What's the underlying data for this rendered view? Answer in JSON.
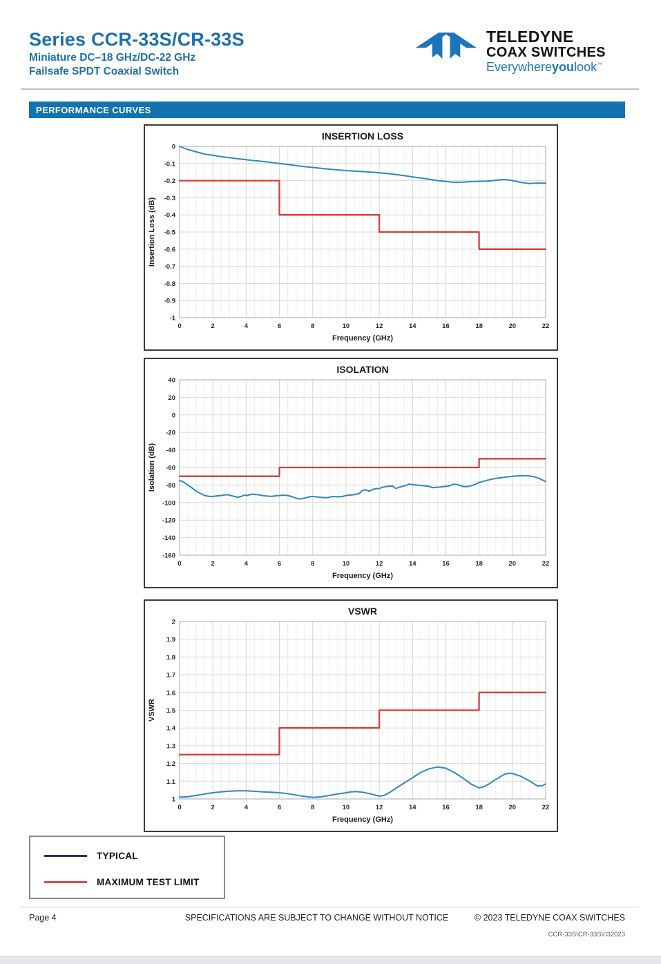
{
  "header": {
    "title": "Series CCR-33S/CR-33S",
    "subtitle1": "Miniature DC–18 GHz/DC-22 GHz",
    "subtitle2": "Failsafe SPDT Coaxial Switch",
    "logo": {
      "line1": "TELEDYNE",
      "line2": "COAX SWITCHES",
      "tagline_pre": "Everywhere",
      "tagline_bold": "you",
      "tagline_post": "look",
      "tm": "™"
    }
  },
  "section_banner": "PERFORMANCE CURVES",
  "colors": {
    "heading_blue": "#1E6FAD",
    "banner_blue": "#1173AF",
    "logo_blue": "#1B75BC",
    "typical_curve": "#2E86C1",
    "max_limit_curve": "#D93B36",
    "legend_typical": "#1F3864",
    "legend_limit": "#CE4B51"
  },
  "legend": {
    "items": [
      {
        "label": "TYPICAL",
        "color": "#1F3864"
      },
      {
        "label": "MAXIMUM TEST LIMIT",
        "color": "#CE4B51"
      }
    ]
  },
  "footer": {
    "page": "Page 4",
    "center": "SPECIFICATIONS ARE SUBJECT TO CHANGE WITHOUT NOTICE",
    "right": "© 2023 TELEDYNE COAX SWITCHES",
    "doc_number": "CCR-33S\\CR-33S\\032023"
  },
  "chart_data": [
    {
      "type": "line",
      "title": "INSERTION LOSS",
      "xlabel": "Frequency (GHz)",
      "ylabel": "Insertion Loss (dB)",
      "xlim": [
        0,
        22
      ],
      "ylim": [
        -1,
        0
      ],
      "xtick_step": 2,
      "ytick_step": 0.1,
      "x_minor_step": 0.5,
      "grid": true,
      "legend_position": "none",
      "series": [
        {
          "name": "TYPICAL",
          "color": "#2E86C1",
          "width": 2,
          "points": [
            [
              0,
              0
            ],
            [
              0.5,
              -0.018
            ],
            [
              1,
              -0.032
            ],
            [
              1.5,
              -0.045
            ],
            [
              2,
              -0.052
            ],
            [
              2.5,
              -0.06
            ],
            [
              3,
              -0.066
            ],
            [
              3.5,
              -0.072
            ],
            [
              4,
              -0.078
            ],
            [
              4.5,
              -0.083
            ],
            [
              5,
              -0.088
            ],
            [
              5.5,
              -0.094
            ],
            [
              6,
              -0.1
            ],
            [
              6.5,
              -0.106
            ],
            [
              7,
              -0.112
            ],
            [
              7.5,
              -0.118
            ],
            [
              8,
              -0.123
            ],
            [
              8.5,
              -0.128
            ],
            [
              9,
              -0.133
            ],
            [
              9.5,
              -0.137
            ],
            [
              10,
              -0.141
            ],
            [
              10.5,
              -0.144
            ],
            [
              11,
              -0.147
            ],
            [
              11.5,
              -0.15
            ],
            [
              12,
              -0.154
            ],
            [
              12.5,
              -0.158
            ],
            [
              13,
              -0.164
            ],
            [
              13.5,
              -0.171
            ],
            [
              14,
              -0.178
            ],
            [
              14.5,
              -0.185
            ],
            [
              15,
              -0.192
            ],
            [
              15.5,
              -0.199
            ],
            [
              16,
              -0.205
            ],
            [
              16.5,
              -0.21
            ],
            [
              17,
              -0.209
            ],
            [
              17.5,
              -0.206
            ],
            [
              18,
              -0.204
            ],
            [
              18.5,
              -0.203
            ],
            [
              19,
              -0.198
            ],
            [
              19.5,
              -0.193
            ],
            [
              20,
              -0.199
            ],
            [
              20.5,
              -0.21
            ],
            [
              21,
              -0.217
            ],
            [
              21.5,
              -0.214
            ],
            [
              22,
              -0.215
            ]
          ]
        },
        {
          "name": "MAXIMUM TEST LIMIT",
          "color": "#D93B36",
          "width": 2.3,
          "points": [
            [
              0,
              -0.2
            ],
            [
              6,
              -0.2
            ],
            [
              6,
              -0.4
            ],
            [
              12,
              -0.4
            ],
            [
              12,
              -0.5
            ],
            [
              18,
              -0.5
            ],
            [
              18,
              -0.6
            ],
            [
              22,
              -0.6
            ]
          ]
        }
      ]
    },
    {
      "type": "line",
      "title": "ISOLATION",
      "xlabel": "Frequency (GHz)",
      "ylabel": "Isolation (dB)",
      "xlim": [
        0,
        22
      ],
      "ylim": [
        -160,
        40
      ],
      "xtick_step": 2,
      "ytick_step": 20,
      "x_minor_step": 0.5,
      "grid": true,
      "legend_position": "none",
      "series": [
        {
          "name": "TYPICAL",
          "color": "#2E86C1",
          "width": 2,
          "points": [
            [
              0,
              -75
            ],
            [
              0.2,
              -76
            ],
            [
              0.5,
              -80
            ],
            [
              0.8,
              -84
            ],
            [
              1,
              -87
            ],
            [
              1.2,
              -89
            ],
            [
              1.5,
              -92
            ],
            [
              1.8,
              -93
            ],
            [
              2,
              -93
            ],
            [
              2.2,
              -92.5
            ],
            [
              2.5,
              -92
            ],
            [
              2.8,
              -91
            ],
            [
              3,
              -91.5
            ],
            [
              3.2,
              -92.5
            ],
            [
              3.5,
              -94
            ],
            [
              3.7,
              -93
            ],
            [
              3.9,
              -91.5
            ],
            [
              4.1,
              -92
            ],
            [
              4.3,
              -90.5
            ],
            [
              4.5,
              -90.5
            ],
            [
              4.7,
              -91
            ],
            [
              5,
              -92
            ],
            [
              5.2,
              -92.5
            ],
            [
              5.5,
              -93
            ],
            [
              5.7,
              -92.5
            ],
            [
              6,
              -92
            ],
            [
              6.2,
              -91.5
            ],
            [
              6.5,
              -92
            ],
            [
              6.8,
              -93.5
            ],
            [
              7,
              -95
            ],
            [
              7.2,
              -96
            ],
            [
              7.5,
              -95
            ],
            [
              7.8,
              -93.5
            ],
            [
              8,
              -93
            ],
            [
              8.2,
              -93.5
            ],
            [
              8.5,
              -94
            ],
            [
              8.8,
              -94.5
            ],
            [
              9,
              -94
            ],
            [
              9.2,
              -93
            ],
            [
              9.5,
              -93.5
            ],
            [
              9.8,
              -93
            ],
            [
              10,
              -92
            ],
            [
              10.2,
              -91.5
            ],
            [
              10.5,
              -91
            ],
            [
              10.8,
              -89.5
            ],
            [
              11,
              -86
            ],
            [
              11.2,
              -85.5
            ],
            [
              11.4,
              -87
            ],
            [
              11.6,
              -85
            ],
            [
              11.8,
              -84
            ],
            [
              12,
              -84
            ],
            [
              12.2,
              -82.5
            ],
            [
              12.5,
              -81.5
            ],
            [
              12.8,
              -81
            ],
            [
              13,
              -84
            ],
            [
              13.2,
              -82.5
            ],
            [
              13.5,
              -81
            ],
            [
              13.8,
              -79
            ],
            [
              14,
              -79.5
            ],
            [
              14.2,
              -80
            ],
            [
              14.5,
              -80.5
            ],
            [
              14.8,
              -81
            ],
            [
              15,
              -81.5
            ],
            [
              15.2,
              -83
            ],
            [
              15.5,
              -82.5
            ],
            [
              15.8,
              -82
            ],
            [
              16,
              -81.5
            ],
            [
              16.2,
              -81
            ],
            [
              16.5,
              -79
            ],
            [
              16.8,
              -80
            ],
            [
              17,
              -81.5
            ],
            [
              17.2,
              -82
            ],
            [
              17.5,
              -81
            ],
            [
              17.8,
              -79
            ],
            [
              18,
              -77
            ],
            [
              18.3,
              -75.5
            ],
            [
              18.6,
              -74
            ],
            [
              19,
              -72.5
            ],
            [
              19.4,
              -71.5
            ],
            [
              19.8,
              -70.5
            ],
            [
              20.2,
              -69.8
            ],
            [
              20.6,
              -69.3
            ],
            [
              21,
              -69.5
            ],
            [
              21.3,
              -70.5
            ],
            [
              21.6,
              -72.5
            ],
            [
              22,
              -76
            ]
          ]
        },
        {
          "name": "MAXIMUM TEST LIMIT",
          "color": "#D93B36",
          "width": 2.3,
          "points": [
            [
              0,
              -70
            ],
            [
              6,
              -70
            ],
            [
              6,
              -60
            ],
            [
              18,
              -60
            ],
            [
              18,
              -50
            ],
            [
              22,
              -50
            ]
          ]
        }
      ]
    },
    {
      "type": "line",
      "title": "VSWR",
      "xlabel": "Frequency (GHz)",
      "ylabel": "VSWR",
      "xlim": [
        0,
        22
      ],
      "ylim": [
        1,
        2
      ],
      "xtick_step": 2,
      "ytick_step": 0.1,
      "x_minor_step": 0.5,
      "grid": true,
      "legend_position": "none",
      "series": [
        {
          "name": "TYPICAL",
          "color": "#2E86C1",
          "width": 2,
          "points": [
            [
              0,
              1.01
            ],
            [
              0.5,
              1.013
            ],
            [
              1,
              1.02
            ],
            [
              1.5,
              1.028
            ],
            [
              2,
              1.035
            ],
            [
              2.5,
              1.04
            ],
            [
              3,
              1.044
            ],
            [
              3.5,
              1.046
            ],
            [
              4,
              1.046
            ],
            [
              4.5,
              1.043
            ],
            [
              5,
              1.04
            ],
            [
              5.5,
              1.038
            ],
            [
              6,
              1.035
            ],
            [
              6.5,
              1.03
            ],
            [
              7,
              1.022
            ],
            [
              7.5,
              1.014
            ],
            [
              8,
              1.009
            ],
            [
              8.5,
              1.012
            ],
            [
              9,
              1.02
            ],
            [
              9.5,
              1.028
            ],
            [
              10,
              1.035
            ],
            [
              10.3,
              1.04
            ],
            [
              10.6,
              1.042
            ],
            [
              11,
              1.038
            ],
            [
              11.5,
              1.028
            ],
            [
              12,
              1.016
            ],
            [
              12.3,
              1.02
            ],
            [
              12.6,
              1.035
            ],
            [
              13,
              1.06
            ],
            [
              13.5,
              1.09
            ],
            [
              14,
              1.12
            ],
            [
              14.5,
              1.15
            ],
            [
              15,
              1.17
            ],
            [
              15.5,
              1.18
            ],
            [
              16,
              1.173
            ],
            [
              16.5,
              1.15
            ],
            [
              17,
              1.12
            ],
            [
              17.5,
              1.085
            ],
            [
              18,
              1.062
            ],
            [
              18.3,
              1.07
            ],
            [
              18.6,
              1.085
            ],
            [
              19,
              1.11
            ],
            [
              19.5,
              1.138
            ],
            [
              19.8,
              1.145
            ],
            [
              20,
              1.143
            ],
            [
              20.5,
              1.128
            ],
            [
              21,
              1.103
            ],
            [
              21.5,
              1.073
            ],
            [
              21.8,
              1.075
            ],
            [
              22,
              1.085
            ]
          ]
        },
        {
          "name": "MAXIMUM TEST LIMIT",
          "color": "#D93B36",
          "width": 2.3,
          "points": [
            [
              0,
              1.25
            ],
            [
              6,
              1.25
            ],
            [
              6,
              1.4
            ],
            [
              12,
              1.4
            ],
            [
              12,
              1.5
            ],
            [
              18,
              1.5
            ],
            [
              18,
              1.6
            ],
            [
              22,
              1.6
            ]
          ]
        }
      ]
    }
  ]
}
